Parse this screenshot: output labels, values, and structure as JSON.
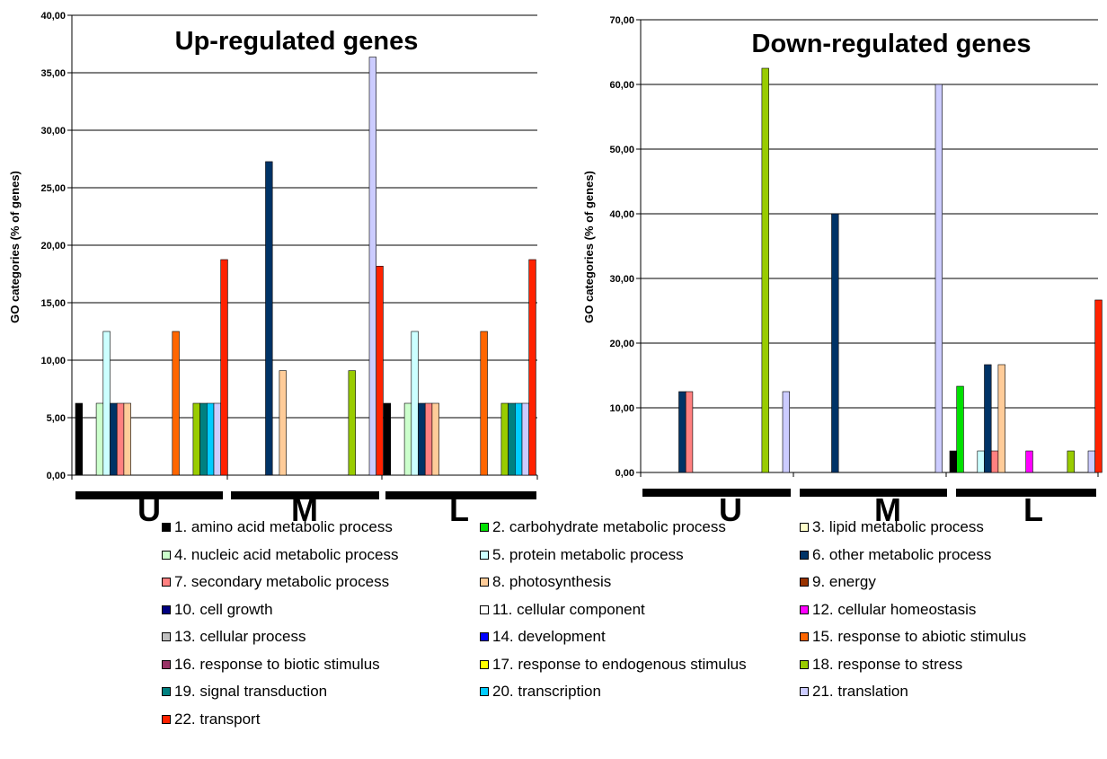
{
  "legend_items": [
    {
      "label": "1. amino acid metabolic process",
      "color": "#000000"
    },
    {
      "label": "2. carbohydrate metabolic process",
      "color": "#00e000"
    },
    {
      "label": "3. lipid metabolic process",
      "color": "#ffffcc"
    },
    {
      "label": "4. nucleic acid metabolic process",
      "color": "#ccffcc"
    },
    {
      "label": "5. protein metabolic process",
      "color": "#ccffff"
    },
    {
      "label": "6. other metabolic process",
      "color": "#003366"
    },
    {
      "label": "7. secondary metabolic process",
      "color": "#ff8080"
    },
    {
      "label": "8. photosynthesis",
      "color": "#ffcc99"
    },
    {
      "label": "9. energy",
      "color": "#993300"
    },
    {
      "label": "10. cell growth",
      "color": "#000080"
    },
    {
      "label": "11. cellular component",
      "color": "#ffffff"
    },
    {
      "label": "12. cellular homeostasis",
      "color": "#ff00ff"
    },
    {
      "label": "13. cellular process",
      "color": "#c0c0c0"
    },
    {
      "label": "14. development",
      "color": "#0000ff"
    },
    {
      "label": "15. response to abiotic stimulus",
      "color": "#ff6600"
    },
    {
      "label": "16. response to biotic stimulus",
      "color": "#993366"
    },
    {
      "label": "17. response to endogenous stimulus",
      "color": "#ffff00"
    },
    {
      "label": "18. response to stress",
      "color": "#99cc00"
    },
    {
      "label": "19. signal transduction",
      "color": "#008080"
    },
    {
      "label": "20. transcription",
      "color": "#00ccff"
    },
    {
      "label": "21. translation",
      "color": "#ccccff"
    },
    {
      "label": "22. transport",
      "color": "#ff2200"
    }
  ],
  "chart_data": [
    {
      "type": "bar",
      "title": "Up-regulated genes",
      "ylabel": "GO categories (% of genes)",
      "xlabel": "",
      "ylim": [
        0,
        40
      ],
      "yticks": [
        "0,00",
        "5,00",
        "10,00",
        "15,00",
        "20,00",
        "25,00",
        "30,00",
        "35,00",
        "40,00"
      ],
      "grid": true,
      "groups": [
        "U",
        "M",
        "L"
      ],
      "series_values": {
        "U": [
          6.25,
          0,
          0,
          6.25,
          12.5,
          6.25,
          6.25,
          6.25,
          0,
          0,
          0,
          0,
          0,
          0,
          12.5,
          0,
          0,
          6.25,
          6.25,
          6.25,
          6.25,
          18.75
        ],
        "M": [
          0,
          0,
          0,
          0,
          0,
          27.27,
          0,
          9.09,
          0,
          0,
          0,
          0,
          0,
          0,
          0,
          0,
          0,
          9.09,
          0,
          0,
          36.36,
          18.18
        ],
        "L": [
          6.25,
          0,
          0,
          6.25,
          12.5,
          6.25,
          6.25,
          6.25,
          0,
          0,
          0,
          0,
          0,
          0,
          12.5,
          0,
          0,
          6.25,
          6.25,
          6.25,
          6.25,
          18.75
        ]
      }
    },
    {
      "type": "bar",
      "title": "Down-regulated genes",
      "ylabel": "GO categories (% of genes)",
      "xlabel": "",
      "ylim": [
        0,
        70
      ],
      "yticks": [
        "0,00",
        "10,00",
        "20,00",
        "30,00",
        "40,00",
        "50,00",
        "60,00",
        "70,00"
      ],
      "grid": true,
      "groups": [
        "U",
        "M",
        "L"
      ],
      "series_values": {
        "U": [
          0,
          0,
          0,
          0,
          0,
          12.5,
          12.5,
          0,
          0,
          0,
          0,
          0,
          0,
          0,
          0,
          0,
          0,
          62.5,
          0,
          0,
          12.5,
          0
        ],
        "M": [
          0,
          0,
          0,
          0,
          0,
          40,
          0,
          0,
          0,
          0,
          0,
          0,
          0,
          0,
          0,
          0,
          0,
          0,
          0,
          0,
          60,
          0
        ],
        "L": [
          3.33,
          13.33,
          0,
          0,
          3.33,
          16.67,
          3.33,
          16.67,
          0,
          0,
          0,
          3.33,
          0,
          0,
          0,
          0,
          0,
          3.33,
          0,
          0,
          3.33,
          26.67
        ]
      }
    }
  ]
}
